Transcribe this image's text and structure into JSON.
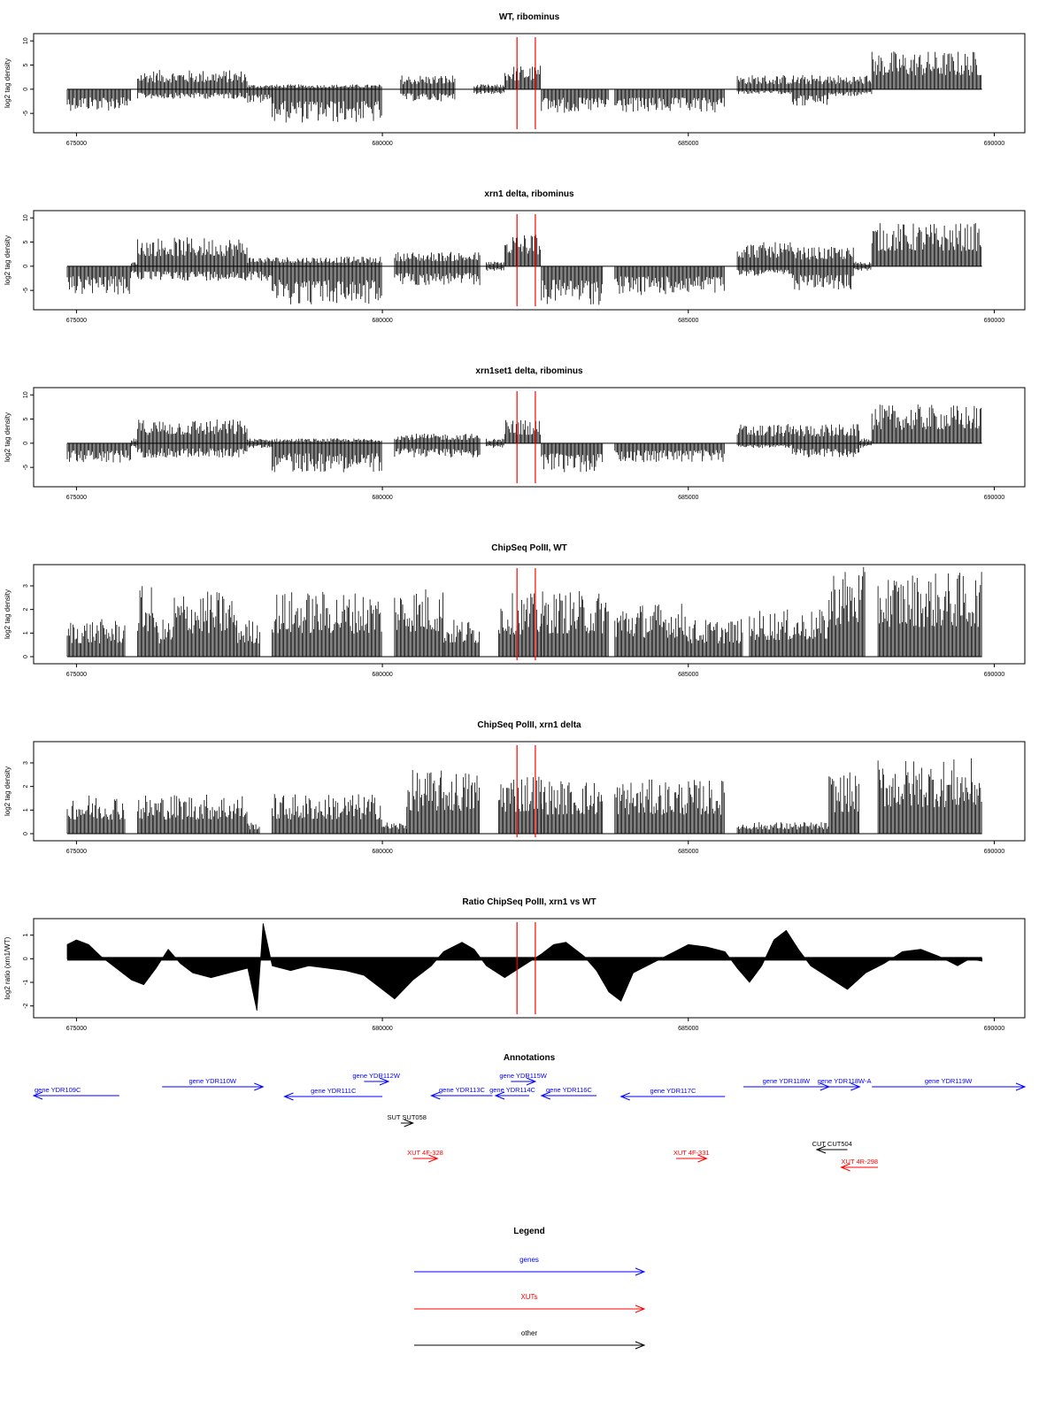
{
  "chart_data": [
    {
      "type": "bar",
      "title": "WT, ribominus",
      "ylabel": "log2 tag density",
      "ylim": [
        -9,
        11.5
      ],
      "yticks": [
        -5,
        0,
        5,
        10
      ],
      "xlim": [
        674300,
        690500
      ],
      "xticks": [
        675000,
        680000,
        685000,
        690000
      ],
      "markers": [
        682200,
        682500
      ],
      "series": [
        {
          "values": [
            [
              674850,
              675000,
              0,
              -4.5
            ],
            [
              675000,
              675900,
              0,
              -4.5
            ],
            [
              675900,
              676000,
              0,
              2
            ],
            [
              676000,
              677800,
              4,
              -2
            ],
            [
              677800,
              678200,
              1,
              -3
            ],
            [
              678200,
              680000,
              1,
              -7
            ],
            [
              680300,
              681200,
              3,
              -2.5
            ],
            [
              681500,
              682000,
              1,
              -1
            ],
            [
              682000,
              682600,
              5,
              0
            ],
            [
              682600,
              683700,
              0,
              -5
            ],
            [
              683800,
              685600,
              0,
              -5
            ],
            [
              685800,
              686700,
              3,
              -1
            ],
            [
              686700,
              687300,
              3,
              -3.5
            ],
            [
              687300,
              688000,
              3,
              -1.5
            ],
            [
              688000,
              689800,
              8,
              0
            ]
          ]
        }
      ]
    },
    {
      "type": "bar",
      "title": "xrn1 delta, ribominus",
      "ylabel": "log2 tag density",
      "ylim": [
        -9,
        11.5
      ],
      "yticks": [
        -5,
        0,
        5,
        10
      ],
      "xlim": [
        674300,
        690500
      ],
      "xticks": [
        675000,
        680000,
        685000,
        690000
      ],
      "markers": [
        682200,
        682500
      ],
      "series": [
        {
          "values": [
            [
              674850,
              675000,
              0,
              -6
            ],
            [
              675000,
              675900,
              0,
              -6
            ],
            [
              675900,
              676000,
              1,
              -2
            ],
            [
              676000,
              677800,
              6,
              -3
            ],
            [
              677800,
              678200,
              2,
              -3
            ],
            [
              678200,
              680000,
              2,
              -8
            ],
            [
              680200,
              681600,
              3,
              -4
            ],
            [
              681700,
              682000,
              1,
              -1
            ],
            [
              682000,
              682600,
              7,
              0
            ],
            [
              682600,
              683600,
              0,
              -8
            ],
            [
              683800,
              685600,
              0,
              -6
            ],
            [
              685800,
              686700,
              5,
              -2
            ],
            [
              686700,
              687700,
              4,
              -5
            ],
            [
              687700,
              688000,
              1,
              -1
            ],
            [
              688000,
              689800,
              9,
              0
            ]
          ]
        }
      ]
    },
    {
      "type": "bar",
      "title": "xrn1set1 delta, ribominus",
      "ylabel": "log2 tag density",
      "ylim": [
        -9,
        11.5
      ],
      "yticks": [
        -5,
        0,
        5,
        10
      ],
      "xlim": [
        674300,
        690500
      ],
      "xticks": [
        675000,
        680000,
        685000,
        690000
      ],
      "markers": [
        682200,
        682500
      ],
      "series": [
        {
          "values": [
            [
              674850,
              675000,
              0,
              -4
            ],
            [
              675000,
              675900,
              0,
              -4
            ],
            [
              675900,
              676000,
              1,
              -1
            ],
            [
              676000,
              677800,
              5,
              -3
            ],
            [
              677800,
              678200,
              1,
              -1
            ],
            [
              678200,
              680000,
              1,
              -6
            ],
            [
              680200,
              681600,
              2,
              -3
            ],
            [
              681700,
              682000,
              1,
              -1
            ],
            [
              682000,
              682600,
              5,
              0
            ],
            [
              682600,
              683600,
              0,
              -6
            ],
            [
              683800,
              685600,
              0,
              -4
            ],
            [
              685800,
              686700,
              4,
              -1
            ],
            [
              686700,
              687800,
              4,
              -3
            ],
            [
              687800,
              688000,
              1,
              -1
            ],
            [
              688000,
              689800,
              8,
              0
            ]
          ]
        }
      ]
    },
    {
      "type": "bar",
      "title": "ChipSeq PolII, WT",
      "ylabel": "log2 tag density",
      "ylim": [
        -0.3,
        3.9
      ],
      "yticks": [
        0,
        1,
        2,
        3
      ],
      "xlim": [
        674300,
        690500
      ],
      "xticks": [
        675000,
        680000,
        685000,
        690000
      ],
      "markers": [
        682200,
        682500
      ],
      "series": [
        {
          "values": [
            [
              674850,
              675800,
              1.6,
              0
            ],
            [
              676000,
              676300,
              3,
              0
            ],
            [
              676300,
              676600,
              1.6,
              0
            ],
            [
              676600,
              677600,
              2.8,
              0
            ],
            [
              677600,
              678000,
              1.6,
              0
            ],
            [
              678200,
              680000,
              2.8,
              0
            ],
            [
              680200,
              681000,
              3,
              0
            ],
            [
              681000,
              681600,
              1.6,
              0
            ],
            [
              681900,
              682600,
              2.7,
              0
            ],
            [
              682600,
              683700,
              2.8,
              0
            ],
            [
              683800,
              685000,
              2.3,
              0
            ],
            [
              685000,
              685900,
              1.6,
              0
            ],
            [
              686000,
              687300,
              2,
              0
            ],
            [
              687300,
              687900,
              3.8,
              0
            ],
            [
              688100,
              689800,
              3.6,
              0
            ]
          ]
        }
      ]
    },
    {
      "type": "bar",
      "title": "ChipSeq PolII, xrn1 delta",
      "ylabel": "log2 tag density",
      "ylim": [
        -0.3,
        3.9
      ],
      "yticks": [
        0,
        1,
        2,
        3
      ],
      "xlim": [
        674300,
        690500
      ],
      "xticks": [
        675000,
        680000,
        685000,
        690000
      ],
      "markers": [
        682200,
        682500
      ],
      "series": [
        {
          "values": [
            [
              674850,
              675800,
              1.7,
              0
            ],
            [
              676000,
              677800,
              1.7,
              0
            ],
            [
              677800,
              678000,
              0.5,
              0
            ],
            [
              678200,
              680000,
              1.7,
              0
            ],
            [
              680000,
              680400,
              0.5,
              0
            ],
            [
              680400,
              681600,
              2.7,
              0
            ],
            [
              681900,
              682600,
              2.6,
              0
            ],
            [
              682600,
              683600,
              2.3,
              0
            ],
            [
              683800,
              685600,
              2.3,
              0
            ],
            [
              685800,
              687300,
              0.5,
              0
            ],
            [
              687300,
              687800,
              2.6,
              0
            ],
            [
              688100,
              689800,
              3.2,
              0
            ]
          ]
        }
      ]
    },
    {
      "type": "area",
      "title": "Ratio ChipSeq PolII, xrn1 vs WT",
      "ylabel": "log2 ratio (xrn1/WT)",
      "ylim": [
        -2.5,
        1.7
      ],
      "yticks": [
        -2,
        -1,
        0,
        1
      ],
      "xlim": [
        674300,
        690500
      ],
      "xticks": [
        675000,
        680000,
        685000,
        690000
      ],
      "markers": [
        682200,
        682500
      ],
      "series": [
        {
          "values": [
            [
              674850,
              0.6
            ],
            [
              675000,
              0.8
            ],
            [
              675200,
              0.6
            ],
            [
              675400,
              0.1
            ],
            [
              675600,
              -0.3
            ],
            [
              675900,
              -0.9
            ],
            [
              676100,
              -1.1
            ],
            [
              676300,
              -0.4
            ],
            [
              676500,
              0.4
            ],
            [
              676700,
              -0.2
            ],
            [
              676900,
              -0.6
            ],
            [
              677200,
              -0.8
            ],
            [
              677500,
              -0.6
            ],
            [
              677800,
              -0.4
            ],
            [
              677950,
              -2.2
            ],
            [
              678050,
              1.5
            ],
            [
              678200,
              -0.3
            ],
            [
              678500,
              -0.5
            ],
            [
              678800,
              -0.3
            ],
            [
              679100,
              -0.4
            ],
            [
              679400,
              -0.5
            ],
            [
              679700,
              -0.7
            ],
            [
              680000,
              -1.3
            ],
            [
              680200,
              -1.7
            ],
            [
              680500,
              -0.9
            ],
            [
              680800,
              -0.3
            ],
            [
              681000,
              0.3
            ],
            [
              681300,
              0.7
            ],
            [
              681500,
              0.4
            ],
            [
              681700,
              -0.3
            ],
            [
              682000,
              -0.8
            ],
            [
              682300,
              -0.3
            ],
            [
              682600,
              0.2
            ],
            [
              682800,
              0.6
            ],
            [
              683000,
              0.7
            ],
            [
              683300,
              0.1
            ],
            [
              683500,
              -0.5
            ],
            [
              683700,
              -1.4
            ],
            [
              683900,
              -1.8
            ],
            [
              684100,
              -0.6
            ],
            [
              684400,
              -0.2
            ],
            [
              684700,
              0.2
            ],
            [
              685000,
              0.6
            ],
            [
              685300,
              0.5
            ],
            [
              685600,
              0.3
            ],
            [
              685800,
              -0.4
            ],
            [
              686000,
              -1.0
            ],
            [
              686200,
              -0.3
            ],
            [
              686400,
              0.8
            ],
            [
              686600,
              1.2
            ],
            [
              686800,
              0.4
            ],
            [
              687000,
              -0.3
            ],
            [
              687300,
              -0.8
            ],
            [
              687600,
              -1.3
            ],
            [
              687900,
              -0.6
            ],
            [
              688200,
              -0.2
            ],
            [
              688500,
              0.3
            ],
            [
              688800,
              0.4
            ],
            [
              689100,
              0.1
            ],
            [
              689400,
              -0.3
            ],
            [
              689600,
              0.0
            ],
            [
              689800,
              -0.1
            ]
          ]
        }
      ]
    },
    {
      "type": "annotation-track",
      "title": "Annotations",
      "xlim": [
        674300,
        690500
      ],
      "features": [
        {
          "label": "gene YDR109C",
          "start": 674300,
          "end": 675700,
          "strand": "-",
          "row": 3,
          "kind": "gene"
        },
        {
          "label": "gene YDR110W",
          "start": 676400,
          "end": 678050,
          "strand": "+",
          "row": 1,
          "kind": "gene"
        },
        {
          "label": "gene YDR111C",
          "start": 678400,
          "end": 680000,
          "strand": "-",
          "row": 4,
          "kind": "gene"
        },
        {
          "label": "gene YDR112W",
          "start": 679700,
          "end": 680100,
          "strand": "+",
          "row": 2,
          "kind": "gene"
        },
        {
          "label": "gene YDR113C",
          "start": 680800,
          "end": 681800,
          "strand": "-",
          "row": 3,
          "kind": "gene"
        },
        {
          "label": "gene YDR114C",
          "start": 681850,
          "end": 682400,
          "strand": "-",
          "row": 3,
          "kind": "gene"
        },
        {
          "label": "gene YDR115W",
          "start": 682100,
          "end": 682500,
          "strand": "+",
          "row": 2,
          "kind": "gene"
        },
        {
          "label": "gene YDR116C",
          "start": 682600,
          "end": 683500,
          "strand": "-",
          "row": 3,
          "kind": "gene"
        },
        {
          "label": "gene YDR117C",
          "start": 683900,
          "end": 685600,
          "strand": "-",
          "row": 4,
          "kind": "gene"
        },
        {
          "label": "gene YDR118W",
          "start": 685900,
          "end": 687300,
          "strand": "+",
          "row": 1,
          "kind": "gene"
        },
        {
          "label": "gene YDR118W-A",
          "start": 687300,
          "end": 687800,
          "strand": "+",
          "row": 1,
          "kind": "gene"
        },
        {
          "label": "gene YDR119W",
          "start": 688000,
          "end": 690500,
          "strand": "+",
          "row": 1,
          "kind": "gene"
        },
        {
          "label": "SUT SUT058",
          "start": 680300,
          "end": 680500,
          "strand": "+",
          "row": 5,
          "kind": "other"
        },
        {
          "label": "CUT CUT504",
          "start": 687100,
          "end": 687600,
          "strand": "-",
          "row": 6,
          "kind": "other"
        },
        {
          "label": "XUT 4F-328",
          "start": 680500,
          "end": 680900,
          "strand": "+",
          "row": 7,
          "kind": "xut"
        },
        {
          "label": "XUT 4F-331",
          "start": 684800,
          "end": 685300,
          "strand": "+",
          "row": 7,
          "kind": "xut"
        },
        {
          "label": "XUT 4R-298",
          "start": 687500,
          "end": 688100,
          "strand": "-",
          "row": 8,
          "kind": "xut"
        }
      ],
      "colors": {
        "gene": "#0000ff",
        "xut": "#ff0000",
        "other": "#000000"
      }
    },
    {
      "type": "legend",
      "title": "Legend",
      "items": [
        {
          "label": "genes",
          "color": "#0000ff"
        },
        {
          "label": "XUTs",
          "color": "#ff0000"
        },
        {
          "label": "other",
          "color": "#000000"
        }
      ]
    }
  ]
}
